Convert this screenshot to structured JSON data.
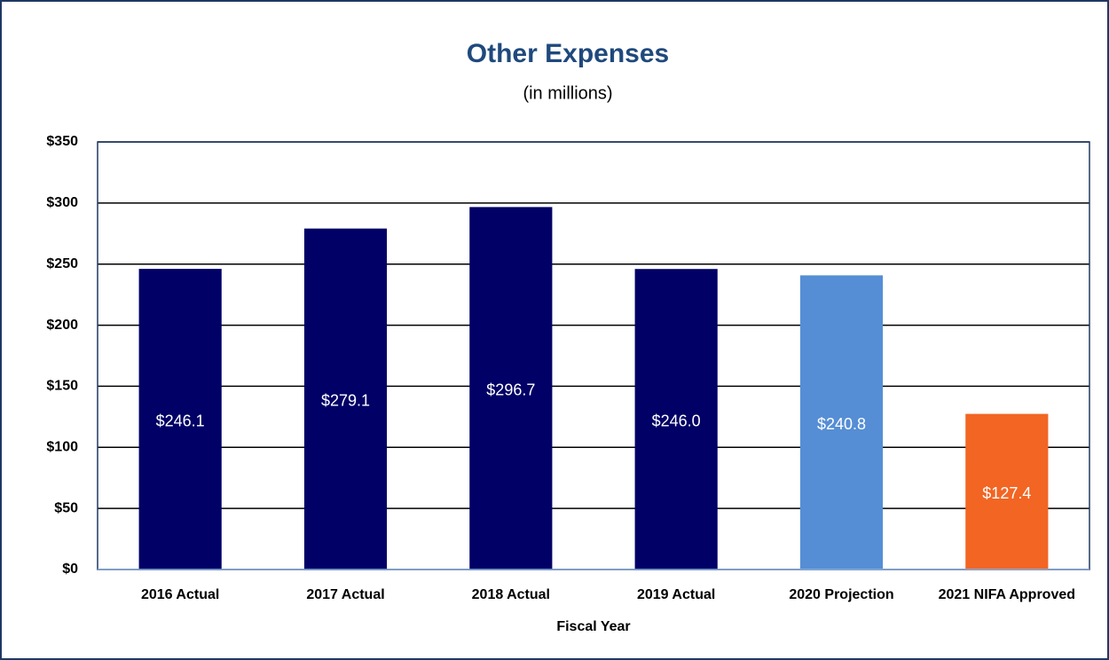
{
  "chart_data": {
    "type": "bar",
    "title": "Other Expenses",
    "subtitle": "(in millions)",
    "x_label": "Fiscal Year",
    "categories": [
      "2016 Actual",
      "2017 Actual",
      "2018 Actual",
      "2019 Actual",
      "2020 Projection",
      "2021 NIFA Approved"
    ],
    "values": [
      246.1,
      279.1,
      296.7,
      246.0,
      240.8,
      127.4
    ],
    "value_labels": [
      "$246.1",
      "$279.1",
      "$296.7",
      "$246.0",
      "$240.8",
      "$127.4"
    ],
    "colors": [
      "#000066",
      "#000066",
      "#000066",
      "#000066",
      "#558ed5",
      "#f26522"
    ],
    "ylim": [
      0,
      350
    ],
    "yticks": [
      {
        "value": 0,
        "label": "$0"
      },
      {
        "value": 50,
        "label": "$50"
      },
      {
        "value": 100,
        "label": "$100"
      },
      {
        "value": 150,
        "label": "$150"
      },
      {
        "value": 200,
        "label": "$200"
      },
      {
        "value": 250,
        "label": "$250"
      },
      {
        "value": 300,
        "label": "$300"
      },
      {
        "value": 350,
        "label": "$350"
      }
    ],
    "grid": true
  }
}
